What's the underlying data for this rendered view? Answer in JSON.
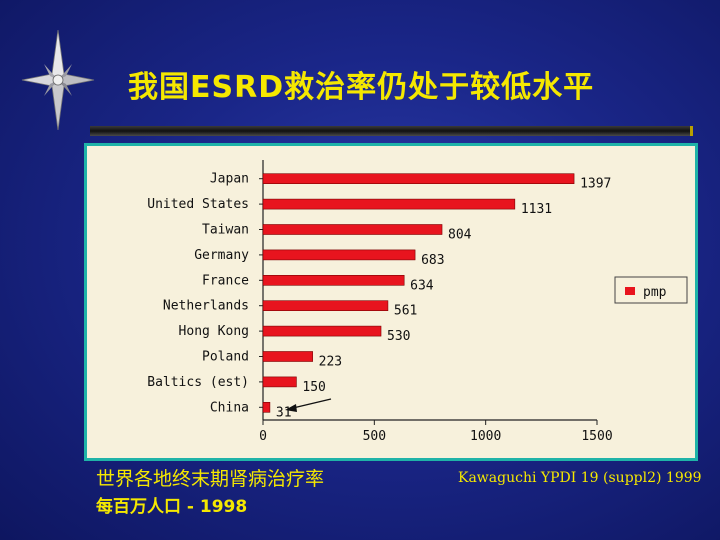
{
  "slide": {
    "title": "我国ESRD救治率仍处于较低水平",
    "caption_line1": "世界各地终末期肾病治疗率",
    "caption_line2": "每百万人口 - 1998",
    "source": "Kawaguchi YPDI 19 (suppl2) 1999"
  },
  "colors": {
    "background": "#1a2688",
    "title": "#f5e800",
    "bar": "#e8141e",
    "frame_border": "#1fb3a8",
    "plot_background": "#f7f1dc"
  },
  "chart_data": {
    "type": "bar",
    "orientation": "horizontal",
    "categories": [
      "Japan",
      "United States",
      "Taiwan",
      "Germany",
      "France",
      "Netherlands",
      "Hong Kong",
      "Poland",
      "Baltics (est)",
      "China"
    ],
    "series": [
      {
        "name": "pmp",
        "values": [
          1397,
          1131,
          804,
          683,
          634,
          561,
          530,
          223,
          150,
          31
        ]
      }
    ],
    "xlim": [
      0,
      1500
    ],
    "xticks": [
      0,
      500,
      1000,
      1500
    ],
    "data_labels": [
      "1397",
      "1131",
      "804",
      "683",
      "634",
      "561",
      "530",
      "223",
      "150",
      "31"
    ],
    "legend_position": "right",
    "grid": false,
    "annotation": "arrow pointing to China"
  }
}
